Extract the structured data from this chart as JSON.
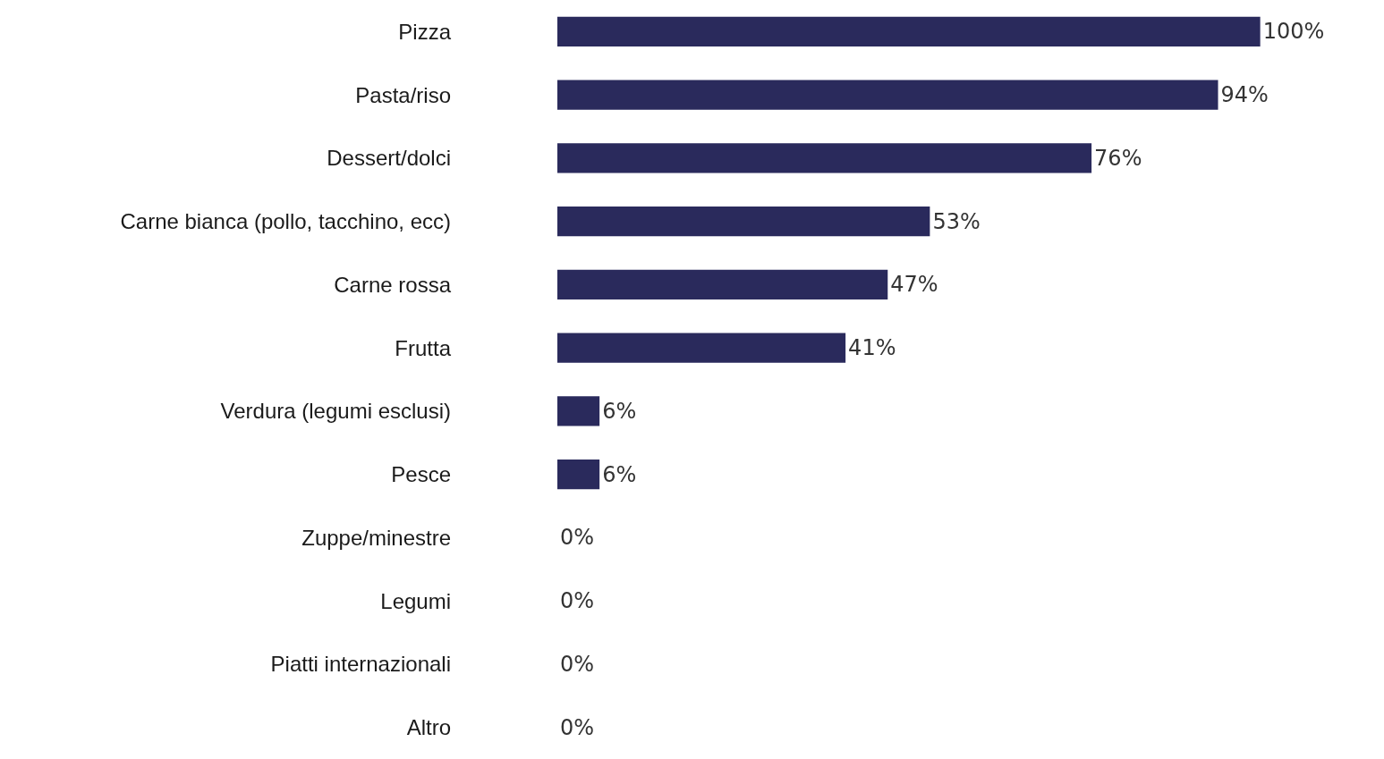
{
  "chart_data": {
    "type": "bar",
    "orientation": "horizontal",
    "color": "#2a2a5c",
    "categories": [
      "Pizza",
      "Pasta/riso",
      "Dessert/dolci",
      "Carne bianca (pollo, tacchino, ecc)",
      "Carne rossa",
      "Frutta",
      "Verdura (legumi esclusi)",
      "Pesce",
      "Zuppe/minestre",
      "Legumi",
      "Piatti internazionali",
      "Altro"
    ],
    "values": [
      100,
      94,
      76,
      53,
      47,
      41,
      6,
      6,
      0,
      0,
      0,
      0
    ],
    "value_labels": [
      "100%",
      "94%",
      "76%",
      "53%",
      "47%",
      "41%",
      "6%",
      "6%",
      "0%",
      "0%",
      "0%",
      "0%"
    ],
    "legend": false
  }
}
